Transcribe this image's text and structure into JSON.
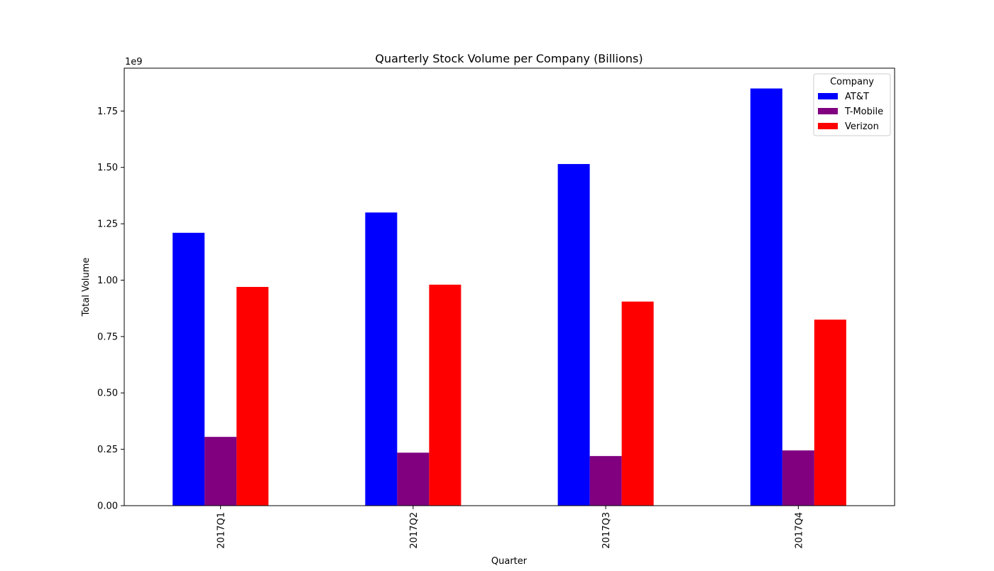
{
  "chart_data": {
    "type": "bar",
    "title": "Quarterly Stock Volume per Company (Billions)",
    "xlabel": "Quarter",
    "ylabel": "Total Volume",
    "y_offset_label": "1e9",
    "categories": [
      "2017Q1",
      "2017Q2",
      "2017Q3",
      "2017Q4"
    ],
    "series": [
      {
        "name": "AT&T",
        "color": "#0000ff",
        "values": [
          1.21,
          1.3,
          1.515,
          1.85
        ]
      },
      {
        "name": "T-Mobile",
        "color": "#800080",
        "values": [
          0.305,
          0.235,
          0.22,
          0.245
        ]
      },
      {
        "name": "Verizon",
        "color": "#ff0000",
        "values": [
          0.97,
          0.98,
          0.905,
          0.825
        ]
      }
    ],
    "ylim": [
      0,
      1.94
    ],
    "yticks": [
      0,
      0.25,
      0.5,
      0.75,
      1.0,
      1.25,
      1.5,
      1.75
    ],
    "ytick_labels": [
      "0.00",
      "0.25",
      "0.50",
      "0.75",
      "1.00",
      "1.25",
      "1.50",
      "1.75"
    ],
    "grid": false,
    "legend": {
      "title": "Company",
      "placement": "top-right"
    }
  }
}
